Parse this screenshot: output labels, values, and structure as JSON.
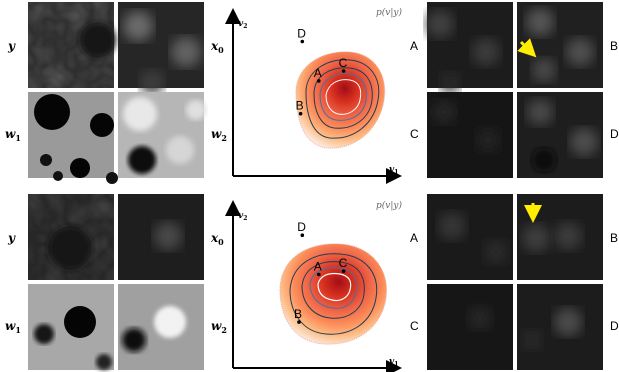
{
  "rows": [
    {
      "row_labels": [
        "y",
        "w",
        "1"
      ],
      "input_labels": [
        "x",
        "0",
        "w",
        "2"
      ],
      "axis_labels": {
        "x": "v",
        "x_sub": "1",
        "y": "v",
        "y_sub": "2"
      },
      "density_label": "p(v|y)",
      "points": [
        {
          "label": "A",
          "vx": 0.52,
          "vy": 0.58
        },
        {
          "label": "B",
          "vx": 0.41,
          "vy": 0.38
        },
        {
          "label": "C",
          "vx": 0.67,
          "vy": 0.64
        },
        {
          "label": "D",
          "vx": 0.42,
          "vy": 0.82
        }
      ],
      "sample_labels": [
        "A",
        "B",
        "C",
        "D"
      ],
      "arrow_panel": "B"
    },
    {
      "row_labels": [
        "y",
        "w",
        "1"
      ],
      "input_labels": [
        "x",
        "0",
        "w",
        "2"
      ],
      "axis_labels": {
        "x": "v",
        "x_sub": "1",
        "y": "v",
        "y_sub": "2"
      },
      "density_label": "p(v|y)",
      "points": [
        {
          "label": "A",
          "vx": 0.52,
          "vy": 0.57
        },
        {
          "label": "B",
          "vx": 0.4,
          "vy": 0.28
        },
        {
          "label": "C",
          "vx": 0.67,
          "vy": 0.59
        },
        {
          "label": "D",
          "vx": 0.42,
          "vy": 0.81
        }
      ],
      "sample_labels": [
        "A",
        "B",
        "C",
        "D"
      ],
      "arrow_panel": "B"
    }
  ],
  "colors": {
    "contour": "#1f3d55",
    "inner_contour": "#ffffff",
    "peak": "#c0101b",
    "arrow": "#ffee00"
  },
  "icons": [
    "yellow-arrow-icon"
  ]
}
